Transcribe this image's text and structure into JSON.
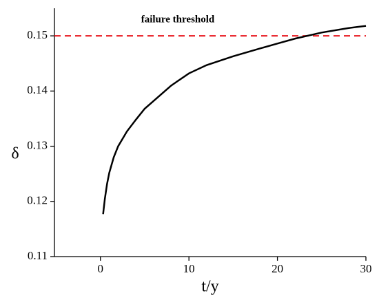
{
  "chart_data": {
    "type": "line",
    "annotation": "failure threshold",
    "x_label": "t/y",
    "y_label": "δ",
    "x": [
      0.3,
      0.5,
      0.75,
      1,
      1.5,
      2,
      3,
      4,
      5,
      6,
      8,
      10,
      12,
      15,
      18,
      20,
      22,
      25,
      28,
      30
    ],
    "series": [
      {
        "color": "#000000",
        "values": [
          0.1177,
          0.1205,
          0.1232,
          0.1252,
          0.128,
          0.13,
          0.1327,
          0.1348,
          0.1368,
          0.1382,
          0.141,
          0.1432,
          0.1447,
          0.1463,
          0.1477,
          0.1486,
          0.1495,
          0.1506,
          0.1514,
          0.1518
        ]
      }
    ],
    "threshold": {
      "value": 0.15,
      "color": "#e8141c"
    },
    "xlim": [
      -5.2,
      30
    ],
    "ylim": [
      0.11,
      0.155
    ],
    "xticks": [
      0,
      10,
      20,
      30
    ],
    "yticks": [
      0.11,
      0.12,
      0.13,
      0.14,
      0.15
    ]
  }
}
